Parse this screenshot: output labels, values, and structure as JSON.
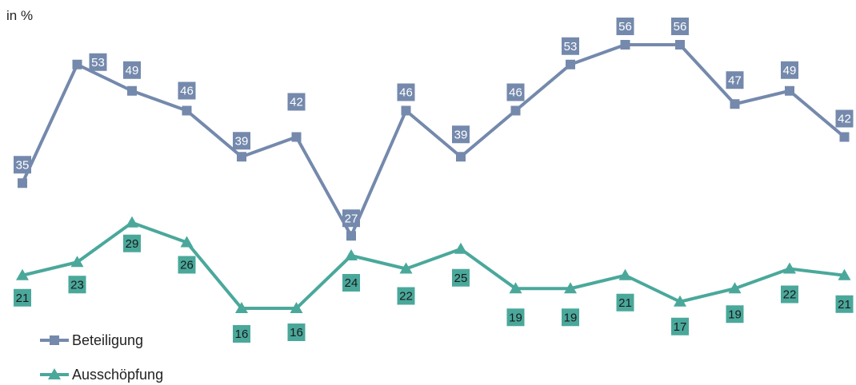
{
  "unit_label": "in %",
  "colors": {
    "beteiligung": "#7489ac",
    "ausschoepfung": "#4aa89b"
  },
  "chart_data": {
    "type": "line",
    "ylabel": "in %",
    "grid": false,
    "legend_position": "bottom-left",
    "ylim": [
      10,
      58
    ],
    "x": [
      1,
      2,
      3,
      4,
      5,
      6,
      7,
      8,
      9,
      10,
      11,
      12,
      13,
      14,
      15,
      16
    ],
    "series": [
      {
        "name": "Beteiligung",
        "marker": "square",
        "values": [
          35,
          53,
          49,
          46,
          39,
          42,
          27,
          46,
          39,
          46,
          53,
          56,
          56,
          47,
          49,
          42
        ]
      },
      {
        "name": "Ausschöpfung",
        "marker": "triangle",
        "values": [
          21,
          23,
          29,
          26,
          16,
          16,
          24,
          22,
          25,
          19,
          19,
          21,
          17,
          19,
          22,
          21
        ]
      }
    ]
  }
}
